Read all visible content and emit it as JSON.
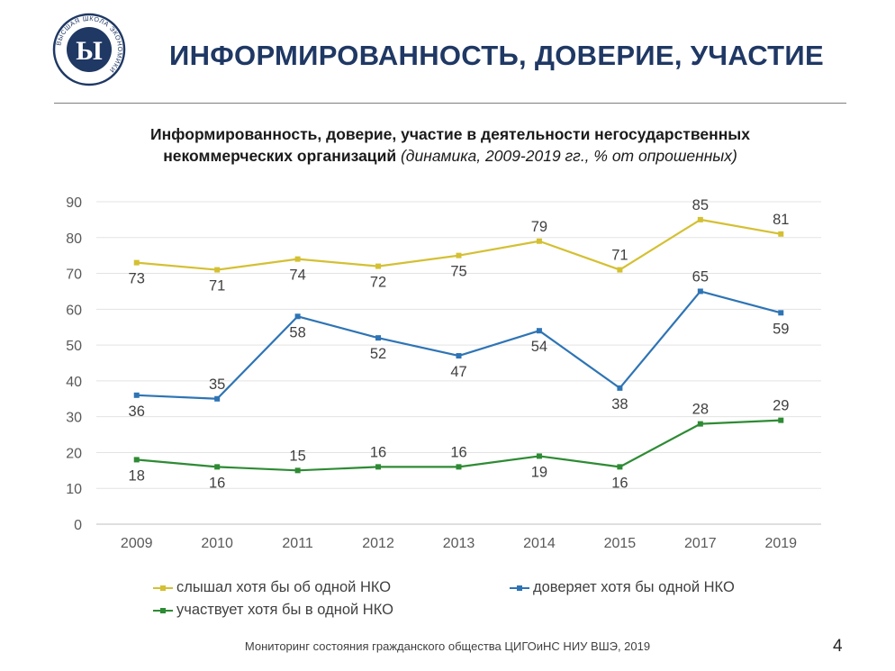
{
  "header": {
    "logo_text": "ВЫСШАЯ ШКОЛА ЭКОНОМИКИ",
    "title": "ИНФОРМИРОВАННОСТЬ, ДОВЕРИЕ, УЧАСТИЕ"
  },
  "chart_title": {
    "line1": "Информированность, доверие, участие в деятельности негосударственных",
    "line2_bold": "некоммерческих организаций",
    "line2_italic": " (динамика, 2009-2019 гг., % от опрошенных)"
  },
  "chart_data": {
    "type": "line",
    "categories": [
      "2009",
      "2010",
      "2011",
      "2012",
      "2013",
      "2014",
      "2015",
      "2017",
      "2019"
    ],
    "ylim": [
      0,
      90
    ],
    "yticks": [
      0,
      10,
      20,
      30,
      40,
      50,
      60,
      70,
      80,
      90
    ],
    "grid": true,
    "legend_position": "bottom",
    "series": [
      {
        "name": "слышал хотя бы об одной НКО",
        "color": "#d4c033",
        "values": [
          73,
          71,
          74,
          72,
          75,
          79,
          71,
          85,
          81
        ],
        "label_pos": [
          "below",
          "below",
          "below",
          "below",
          "below",
          "above",
          "above",
          "above",
          "above"
        ]
      },
      {
        "name": "доверяет хотя бы одной НКО",
        "color": "#2e74b5",
        "values": [
          36,
          35,
          58,
          52,
          47,
          54,
          38,
          65,
          59
        ],
        "label_pos": [
          "below",
          "above",
          "below",
          "below",
          "below",
          "below",
          "below",
          "above",
          "below"
        ]
      },
      {
        "name": "участвует хотя бы в одной НКО",
        "color": "#2e8b34",
        "values": [
          18,
          16,
          15,
          16,
          16,
          19,
          16,
          28,
          29
        ],
        "label_pos": [
          "below",
          "below",
          "above",
          "above",
          "above",
          "below",
          "below",
          "above",
          "above"
        ]
      }
    ]
  },
  "footer": {
    "source": "Мониторинг состояния гражданского общества ЦИГОиНС НИУ ВШЭ, 2019",
    "page_number": "4"
  }
}
